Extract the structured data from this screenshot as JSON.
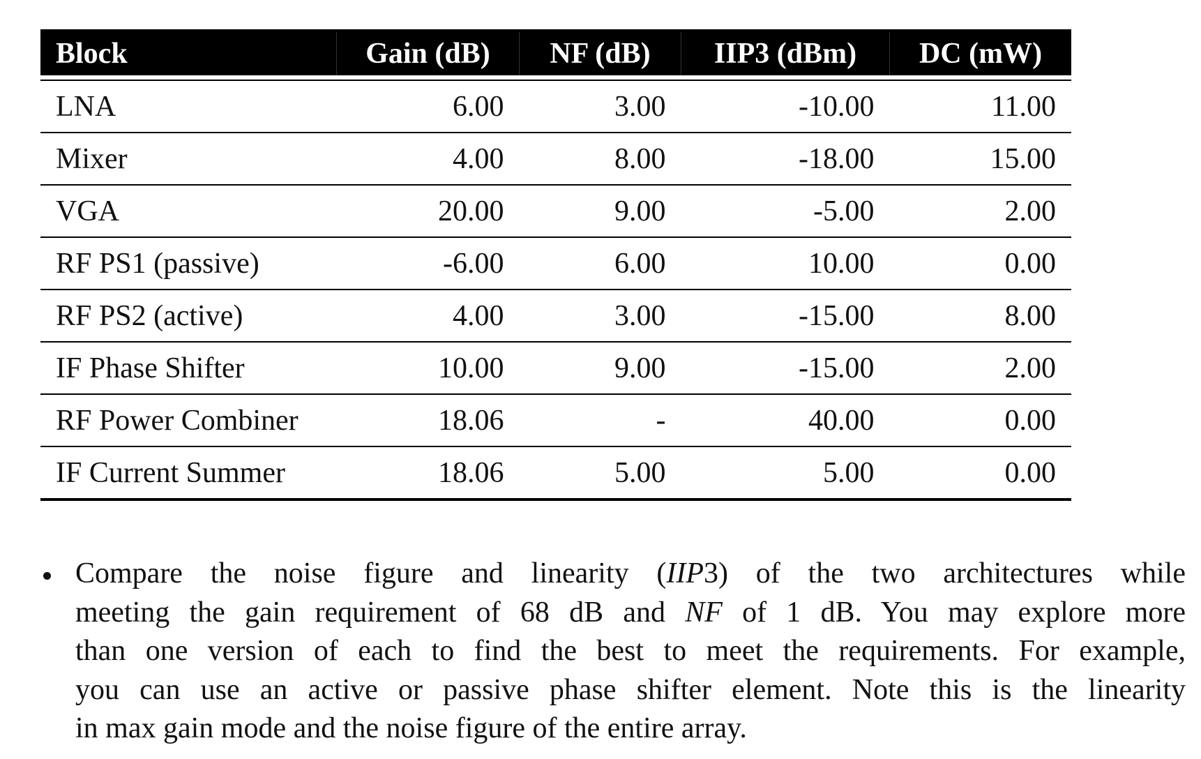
{
  "table": {
    "header": [
      "Block",
      "Gain (dB)",
      "NF (dB)",
      "IIP3 (dBm)",
      "DC (mW)"
    ],
    "rows": [
      [
        "LNA",
        "6.00",
        "3.00",
        "-10.00",
        "11.00"
      ],
      [
        "Mixer",
        "4.00",
        "8.00",
        "-18.00",
        "15.00"
      ],
      [
        "VGA",
        "20.00",
        "9.00",
        "-5.00",
        "2.00"
      ],
      [
        "RF PS1 (passive)",
        "-6.00",
        "6.00",
        "10.00",
        "0.00"
      ],
      [
        "RF PS2 (active)",
        "4.00",
        "3.00",
        "-15.00",
        "8.00"
      ],
      [
        "IF Phase Shifter",
        "10.00",
        "9.00",
        "-15.00",
        "2.00"
      ],
      [
        "RF Power Combiner",
        "18.06",
        "-",
        "40.00",
        "0.00"
      ],
      [
        "IF Current Summer",
        "18.06",
        "5.00",
        "5.00",
        "0.00"
      ]
    ]
  },
  "bullet": {
    "lines": [
      [
        "Compare the noise figure and linearity (",
        "IIP",
        "3) of the two architectures while"
      ],
      [
        "meeting the gain requirement of 68 dB and ",
        "NF",
        " of 1 dB. You may explore more"
      ],
      [
        "than one version of each to find the best to meet the requirements. For example,"
      ],
      [
        "you can use an active or passive phase shifter element. Note this is the linearity"
      ],
      [
        "in max gain mode and the noise figure of the entire array."
      ]
    ]
  }
}
